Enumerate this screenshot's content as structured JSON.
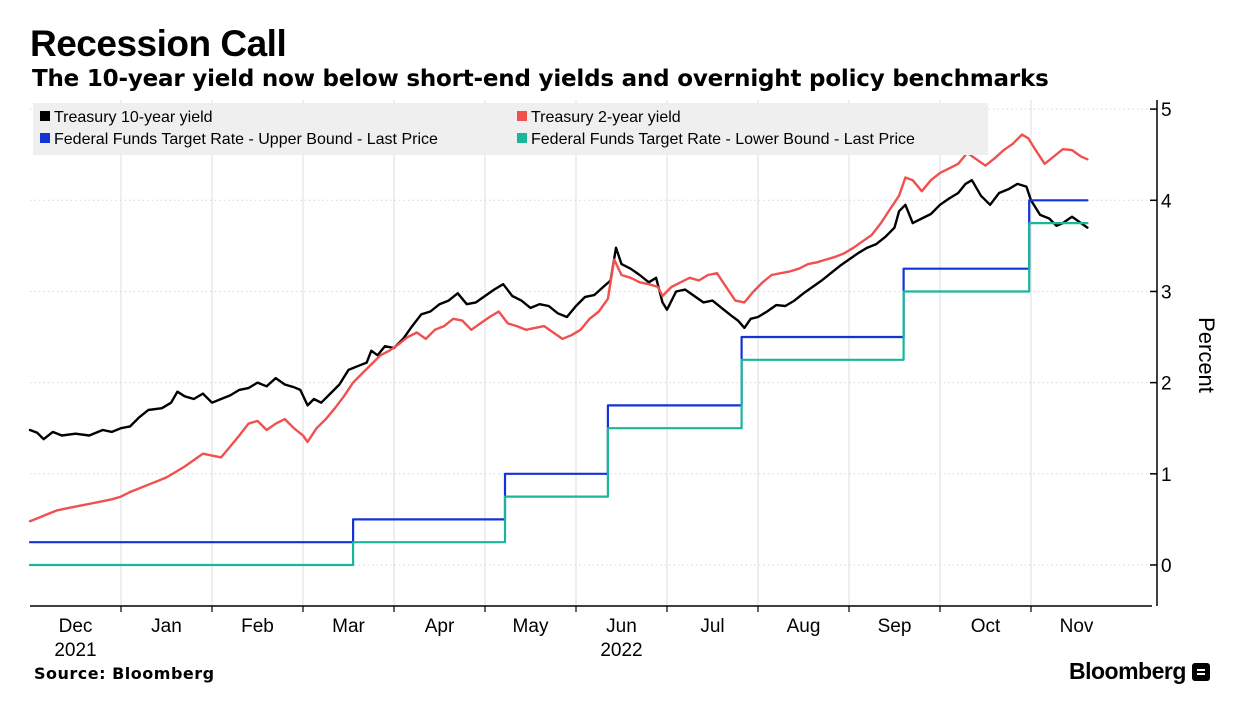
{
  "title": "Recession Call",
  "subtitle": "The 10-year yield now below short-end yields and overnight policy benchmarks",
  "source": "Source: Bloomberg",
  "brand": "Bloomberg",
  "chart_data": {
    "type": "line",
    "title": "Recession Call",
    "subtitle": "The 10-year yield now below short-end yields and overnight policy benchmarks",
    "xlabel": "",
    "ylabel": "Percent",
    "ylim": [
      -0.45,
      5.1
    ],
    "xlim": [
      0,
      12.25
    ],
    "yticks": [
      0,
      1,
      2,
      3,
      4,
      5
    ],
    "x_month_labels": [
      {
        "month": "Dec",
        "x": 0.5
      },
      {
        "month": "Jan",
        "x": 1.5
      },
      {
        "month": "Feb",
        "x": 2.5
      },
      {
        "month": "Mar",
        "x": 3.5
      },
      {
        "month": "Apr",
        "x": 4.5
      },
      {
        "month": "May",
        "x": 5.5
      },
      {
        "month": "Jun",
        "x": 6.5
      },
      {
        "month": "Jul",
        "x": 7.5
      },
      {
        "month": "Aug",
        "x": 8.5
      },
      {
        "month": "Sep",
        "x": 9.5
      },
      {
        "month": "Oct",
        "x": 10.5
      },
      {
        "month": "Nov",
        "x": 11.5
      }
    ],
    "x_year_labels": [
      {
        "year": "2021",
        "x": 0.5
      },
      {
        "year": "2022",
        "x": 6.5
      }
    ],
    "x_gridlines": [
      1,
      2,
      3,
      4,
      5,
      6,
      7,
      8,
      9,
      10,
      11
    ],
    "legend": {
      "placement": "top-left",
      "columns": 2
    },
    "series": [
      {
        "name": "Treasury 10-year yield",
        "color": "#000000",
        "style": "line",
        "points": [
          [
            0,
            1.48
          ],
          [
            0.08,
            1.45
          ],
          [
            0.15,
            1.38
          ],
          [
            0.25,
            1.46
          ],
          [
            0.35,
            1.42
          ],
          [
            0.5,
            1.44
          ],
          [
            0.65,
            1.42
          ],
          [
            0.8,
            1.48
          ],
          [
            0.9,
            1.46
          ],
          [
            1.0,
            1.5
          ],
          [
            1.1,
            1.52
          ],
          [
            1.2,
            1.62
          ],
          [
            1.3,
            1.7
          ],
          [
            1.45,
            1.72
          ],
          [
            1.55,
            1.78
          ],
          [
            1.62,
            1.9
          ],
          [
            1.7,
            1.85
          ],
          [
            1.8,
            1.82
          ],
          [
            1.9,
            1.88
          ],
          [
            2.0,
            1.78
          ],
          [
            2.1,
            1.82
          ],
          [
            2.2,
            1.86
          ],
          [
            2.3,
            1.92
          ],
          [
            2.4,
            1.94
          ],
          [
            2.5,
            2.0
          ],
          [
            2.6,
            1.96
          ],
          [
            2.7,
            2.05
          ],
          [
            2.8,
            1.98
          ],
          [
            2.9,
            1.95
          ],
          [
            2.97,
            1.92
          ],
          [
            3.05,
            1.75
          ],
          [
            3.12,
            1.82
          ],
          [
            3.2,
            1.78
          ],
          [
            3.3,
            1.88
          ],
          [
            3.4,
            1.98
          ],
          [
            3.5,
            2.14
          ],
          [
            3.6,
            2.18
          ],
          [
            3.7,
            2.22
          ],
          [
            3.75,
            2.35
          ],
          [
            3.82,
            2.3
          ],
          [
            3.9,
            2.4
          ],
          [
            4.0,
            2.38
          ],
          [
            4.1,
            2.48
          ],
          [
            4.2,
            2.62
          ],
          [
            4.3,
            2.75
          ],
          [
            4.4,
            2.78
          ],
          [
            4.5,
            2.86
          ],
          [
            4.6,
            2.9
          ],
          [
            4.7,
            2.98
          ],
          [
            4.8,
            2.86
          ],
          [
            4.9,
            2.88
          ],
          [
            5.0,
            2.95
          ],
          [
            5.1,
            3.02
          ],
          [
            5.2,
            3.08
          ],
          [
            5.3,
            2.95
          ],
          [
            5.4,
            2.9
          ],
          [
            5.5,
            2.82
          ],
          [
            5.6,
            2.86
          ],
          [
            5.7,
            2.84
          ],
          [
            5.8,
            2.76
          ],
          [
            5.9,
            2.72
          ],
          [
            6.0,
            2.84
          ],
          [
            6.1,
            2.94
          ],
          [
            6.2,
            2.96
          ],
          [
            6.3,
            3.05
          ],
          [
            6.38,
            3.12
          ],
          [
            6.44,
            3.48
          ],
          [
            6.5,
            3.3
          ],
          [
            6.6,
            3.25
          ],
          [
            6.7,
            3.18
          ],
          [
            6.8,
            3.1
          ],
          [
            6.88,
            3.15
          ],
          [
            6.95,
            2.88
          ],
          [
            7.0,
            2.8
          ],
          [
            7.1,
            3.0
          ],
          [
            7.2,
            3.02
          ],
          [
            7.3,
            2.95
          ],
          [
            7.4,
            2.88
          ],
          [
            7.5,
            2.9
          ],
          [
            7.6,
            2.82
          ],
          [
            7.7,
            2.74
          ],
          [
            7.78,
            2.68
          ],
          [
            7.85,
            2.6
          ],
          [
            7.92,
            2.7
          ],
          [
            8.0,
            2.72
          ],
          [
            8.1,
            2.78
          ],
          [
            8.2,
            2.85
          ],
          [
            8.3,
            2.84
          ],
          [
            8.4,
            2.9
          ],
          [
            8.5,
            2.98
          ],
          [
            8.6,
            3.05
          ],
          [
            8.7,
            3.12
          ],
          [
            8.8,
            3.2
          ],
          [
            8.9,
            3.28
          ],
          [
            9.0,
            3.35
          ],
          [
            9.1,
            3.42
          ],
          [
            9.2,
            3.48
          ],
          [
            9.3,
            3.52
          ],
          [
            9.4,
            3.6
          ],
          [
            9.5,
            3.7
          ],
          [
            9.55,
            3.88
          ],
          [
            9.62,
            3.95
          ],
          [
            9.7,
            3.75
          ],
          [
            9.8,
            3.8
          ],
          [
            9.9,
            3.85
          ],
          [
            10.0,
            3.95
          ],
          [
            10.1,
            4.02
          ],
          [
            10.2,
            4.08
          ],
          [
            10.28,
            4.18
          ],
          [
            10.35,
            4.22
          ],
          [
            10.45,
            4.05
          ],
          [
            10.55,
            3.95
          ],
          [
            10.65,
            4.08
          ],
          [
            10.75,
            4.12
          ],
          [
            10.85,
            4.18
          ],
          [
            10.95,
            4.15
          ],
          [
            11.0,
            4.0
          ],
          [
            11.1,
            3.84
          ],
          [
            11.2,
            3.8
          ],
          [
            11.28,
            3.72
          ],
          [
            11.35,
            3.75
          ],
          [
            11.45,
            3.82
          ],
          [
            11.55,
            3.75
          ],
          [
            11.62,
            3.7
          ]
        ]
      },
      {
        "name": "Treasury 2-year yield",
        "color": "#f0514f",
        "style": "line",
        "points": [
          [
            0,
            0.48
          ],
          [
            0.1,
            0.52
          ],
          [
            0.2,
            0.56
          ],
          [
            0.3,
            0.6
          ],
          [
            0.4,
            0.62
          ],
          [
            0.5,
            0.64
          ],
          [
            0.6,
            0.66
          ],
          [
            0.7,
            0.68
          ],
          [
            0.8,
            0.7
          ],
          [
            0.9,
            0.72
          ],
          [
            1.0,
            0.75
          ],
          [
            1.1,
            0.8
          ],
          [
            1.2,
            0.84
          ],
          [
            1.3,
            0.88
          ],
          [
            1.4,
            0.92
          ],
          [
            1.5,
            0.96
          ],
          [
            1.6,
            1.02
          ],
          [
            1.7,
            1.08
          ],
          [
            1.8,
            1.15
          ],
          [
            1.9,
            1.22
          ],
          [
            2.0,
            1.2
          ],
          [
            2.1,
            1.18
          ],
          [
            2.2,
            1.3
          ],
          [
            2.3,
            1.42
          ],
          [
            2.4,
            1.55
          ],
          [
            2.5,
            1.58
          ],
          [
            2.6,
            1.48
          ],
          [
            2.7,
            1.55
          ],
          [
            2.8,
            1.6
          ],
          [
            2.9,
            1.5
          ],
          [
            3.0,
            1.42
          ],
          [
            3.05,
            1.35
          ],
          [
            3.15,
            1.5
          ],
          [
            3.25,
            1.6
          ],
          [
            3.35,
            1.72
          ],
          [
            3.45,
            1.85
          ],
          [
            3.55,
            2.0
          ],
          [
            3.65,
            2.1
          ],
          [
            3.75,
            2.2
          ],
          [
            3.85,
            2.3
          ],
          [
            3.95,
            2.35
          ],
          [
            4.05,
            2.42
          ],
          [
            4.15,
            2.5
          ],
          [
            4.25,
            2.55
          ],
          [
            4.35,
            2.48
          ],
          [
            4.45,
            2.58
          ],
          [
            4.55,
            2.62
          ],
          [
            4.65,
            2.7
          ],
          [
            4.75,
            2.68
          ],
          [
            4.85,
            2.58
          ],
          [
            4.95,
            2.65
          ],
          [
            5.05,
            2.72
          ],
          [
            5.15,
            2.78
          ],
          [
            5.25,
            2.65
          ],
          [
            5.35,
            2.62
          ],
          [
            5.45,
            2.58
          ],
          [
            5.55,
            2.6
          ],
          [
            5.65,
            2.62
          ],
          [
            5.75,
            2.55
          ],
          [
            5.85,
            2.48
          ],
          [
            5.95,
            2.52
          ],
          [
            6.05,
            2.58
          ],
          [
            6.15,
            2.7
          ],
          [
            6.25,
            2.78
          ],
          [
            6.35,
            2.92
          ],
          [
            6.42,
            3.35
          ],
          [
            6.5,
            3.18
          ],
          [
            6.6,
            3.15
          ],
          [
            6.7,
            3.1
          ],
          [
            6.8,
            3.08
          ],
          [
            6.9,
            3.05
          ],
          [
            6.95,
            2.95
          ],
          [
            7.05,
            3.05
          ],
          [
            7.15,
            3.1
          ],
          [
            7.25,
            3.15
          ],
          [
            7.35,
            3.12
          ],
          [
            7.45,
            3.18
          ],
          [
            7.55,
            3.2
          ],
          [
            7.65,
            3.05
          ],
          [
            7.75,
            2.9
          ],
          [
            7.85,
            2.88
          ],
          [
            7.95,
            3.0
          ],
          [
            8.05,
            3.1
          ],
          [
            8.15,
            3.18
          ],
          [
            8.25,
            3.2
          ],
          [
            8.35,
            3.22
          ],
          [
            8.45,
            3.25
          ],
          [
            8.55,
            3.3
          ],
          [
            8.65,
            3.32
          ],
          [
            8.75,
            3.35
          ],
          [
            8.85,
            3.38
          ],
          [
            8.95,
            3.42
          ],
          [
            9.05,
            3.48
          ],
          [
            9.15,
            3.55
          ],
          [
            9.25,
            3.62
          ],
          [
            9.35,
            3.75
          ],
          [
            9.45,
            3.9
          ],
          [
            9.55,
            4.05
          ],
          [
            9.62,
            4.25
          ],
          [
            9.7,
            4.22
          ],
          [
            9.8,
            4.1
          ],
          [
            9.9,
            4.22
          ],
          [
            10.0,
            4.3
          ],
          [
            10.1,
            4.35
          ],
          [
            10.2,
            4.4
          ],
          [
            10.3,
            4.52
          ],
          [
            10.4,
            4.45
          ],
          [
            10.5,
            4.38
          ],
          [
            10.6,
            4.46
          ],
          [
            10.7,
            4.55
          ],
          [
            10.8,
            4.62
          ],
          [
            10.9,
            4.72
          ],
          [
            10.97,
            4.68
          ],
          [
            11.05,
            4.55
          ],
          [
            11.15,
            4.4
          ],
          [
            11.25,
            4.48
          ],
          [
            11.35,
            4.56
          ],
          [
            11.45,
            4.55
          ],
          [
            11.55,
            4.48
          ],
          [
            11.62,
            4.45
          ]
        ]
      },
      {
        "name": "Federal Funds Target Rate - Upper Bound - Last Price",
        "color": "#1233d6",
        "style": "step",
        "points": [
          [
            0,
            0.25
          ],
          [
            3.55,
            0.25
          ],
          [
            3.55,
            0.5
          ],
          [
            5.22,
            0.5
          ],
          [
            5.22,
            1.0
          ],
          [
            6.35,
            1.0
          ],
          [
            6.35,
            1.75
          ],
          [
            7.82,
            1.75
          ],
          [
            7.82,
            2.5
          ],
          [
            9.6,
            2.5
          ],
          [
            9.6,
            3.25
          ],
          [
            10.98,
            3.25
          ],
          [
            10.98,
            4.0
          ],
          [
            11.62,
            4.0
          ]
        ]
      },
      {
        "name": "Federal Funds Target Rate - Lower Bound - Last Price",
        "color": "#1bb59c",
        "style": "step",
        "points": [
          [
            0,
            0.0
          ],
          [
            3.55,
            0.0
          ],
          [
            3.55,
            0.25
          ],
          [
            5.22,
            0.25
          ],
          [
            5.22,
            0.75
          ],
          [
            6.35,
            0.75
          ],
          [
            6.35,
            1.5
          ],
          [
            7.82,
            1.5
          ],
          [
            7.82,
            2.25
          ],
          [
            9.6,
            2.25
          ],
          [
            9.6,
            3.0
          ],
          [
            10.98,
            3.0
          ],
          [
            10.98,
            3.75
          ],
          [
            11.62,
            3.75
          ]
        ]
      }
    ]
  }
}
